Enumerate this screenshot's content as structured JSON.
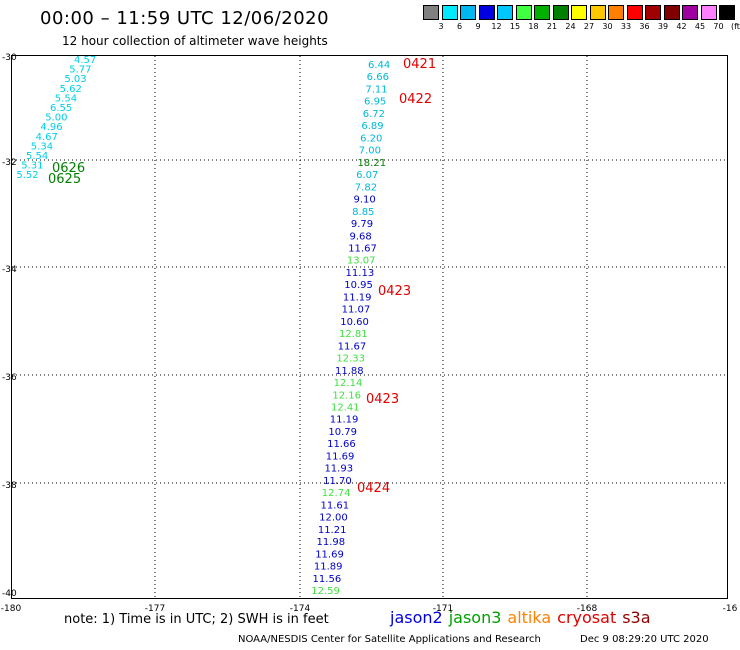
{
  "header": {
    "title": "00:00 – 11:59 UTC 12/06/2020",
    "subtitle": "12 hour collection of altimeter wave heights"
  },
  "colorbar": {
    "labels": [
      "3",
      "6",
      "9",
      "12",
      "15",
      "18",
      "21",
      "24",
      "27",
      "30",
      "33",
      "36",
      "39",
      "42",
      "45",
      "70"
    ],
    "unit": "(ft)",
    "colors": [
      "#808080",
      "#00eaff",
      "#00b8f0",
      "#0000e0",
      "#00c8ff",
      "#40ff40",
      "#00b000",
      "#008000",
      "#ffff00",
      "#ffc800",
      "#ff8000",
      "#ff0000",
      "#a00000",
      "#800000",
      "#a000a0",
      "#ff80ff",
      "#000000"
    ]
  },
  "axes": {
    "x_labels": [
      "-180",
      "-177",
      "-174",
      "-171",
      "-168",
      "-16"
    ],
    "y_labels": [
      "-30",
      "-32",
      "-34",
      "-36",
      "-38",
      "-40"
    ]
  },
  "tracks": [
    {
      "id": "left",
      "color": "#00cfe8",
      "labels": [
        "4.57",
        "5.77",
        "5.03",
        "5.62",
        "5.54",
        "6.55",
        "5.00",
        "4.96",
        "4.67",
        "5.34",
        "5.54",
        "5.31",
        "5.52"
      ]
    },
    {
      "id": "center",
      "labels": [
        {
          "v": "6.44",
          "c": "#00b8d8"
        },
        {
          "v": "6.66",
          "c": "#00b8d8"
        },
        {
          "v": "7.11",
          "c": "#00b8d8"
        },
        {
          "v": "6.95",
          "c": "#00b8d8"
        },
        {
          "v": "6.72",
          "c": "#00b8d8"
        },
        {
          "v": "6.89",
          "c": "#00b8d8"
        },
        {
          "v": "6.20",
          "c": "#00b8d8"
        },
        {
          "v": "7.00",
          "c": "#00b8d8"
        },
        {
          "v": "18.21",
          "c": "#008000"
        },
        {
          "v": "6.07",
          "c": "#00b8d8"
        },
        {
          "v": "7.82",
          "c": "#00b8d8"
        },
        {
          "v": "9.10",
          "c": "#0000c8"
        },
        {
          "v": "8.85",
          "c": "#00b8d8"
        },
        {
          "v": "9.79",
          "c": "#0000c8"
        },
        {
          "v": "9.68",
          "c": "#0000c8"
        },
        {
          "v": "11.67",
          "c": "#0000c8"
        },
        {
          "v": "13.07",
          "c": "#40e040"
        },
        {
          "v": "11.13",
          "c": "#0000c8"
        },
        {
          "v": "10.95",
          "c": "#0000c8"
        },
        {
          "v": "11.19",
          "c": "#0000c8"
        },
        {
          "v": "11.07",
          "c": "#0000c8"
        },
        {
          "v": "10.60",
          "c": "#0000c8"
        },
        {
          "v": "12.81",
          "c": "#40e040"
        },
        {
          "v": "11.67",
          "c": "#0000c8"
        },
        {
          "v": "12.33",
          "c": "#40e040"
        },
        {
          "v": "11.88",
          "c": "#0000c8"
        },
        {
          "v": "12.14",
          "c": "#40e040"
        },
        {
          "v": "12.16",
          "c": "#40e040"
        },
        {
          "v": "12.41",
          "c": "#40e040"
        },
        {
          "v": "11.19",
          "c": "#0000c8"
        },
        {
          "v": "10.79",
          "c": "#0000c8"
        },
        {
          "v": "11.66",
          "c": "#0000c8"
        },
        {
          "v": "11.69",
          "c": "#0000c8"
        },
        {
          "v": "11.93",
          "c": "#0000c8"
        },
        {
          "v": "11.70",
          "c": "#0000c8"
        },
        {
          "v": "12.74",
          "c": "#40e040"
        },
        {
          "v": "11.61",
          "c": "#0000c8"
        },
        {
          "v": "12.00",
          "c": "#0000c8"
        },
        {
          "v": "11.21",
          "c": "#0000c8"
        },
        {
          "v": "11.98",
          "c": "#0000c8"
        },
        {
          "v": "11.69",
          "c": "#0000c8"
        },
        {
          "v": "11.89",
          "c": "#0000c8"
        },
        {
          "v": "11.56",
          "c": "#0000c8"
        },
        {
          "v": "12.59",
          "c": "#40e040"
        }
      ]
    }
  ],
  "time_labels": [
    {
      "text": "0421",
      "color": "#e00000"
    },
    {
      "text": "0422",
      "color": "#e00000"
    },
    {
      "text": "0423",
      "color": "#e00000"
    },
    {
      "text": "0423",
      "color": "#e00000"
    },
    {
      "text": "0424",
      "color": "#e00000"
    },
    {
      "text": "0626",
      "color": "#008000"
    },
    {
      "text": "0625",
      "color": "#008000"
    }
  ],
  "footer": {
    "note": "note:  1) Time is in UTC;  2) SWH is in feet",
    "legend": [
      {
        "name": "jason2",
        "color": "#0000e0"
      },
      {
        "name": "jason3",
        "color": "#00a000"
      },
      {
        "name": "altika",
        "color": "#ff8000"
      },
      {
        "name": "cryosat",
        "color": "#e00000"
      },
      {
        "name": "s3a",
        "color": "#900000"
      }
    ],
    "credit": "NOAA/NESDIS Center for Satellite Applications and Research",
    "timestamp": "Dec  9 08:29:20 UTC 2020"
  }
}
